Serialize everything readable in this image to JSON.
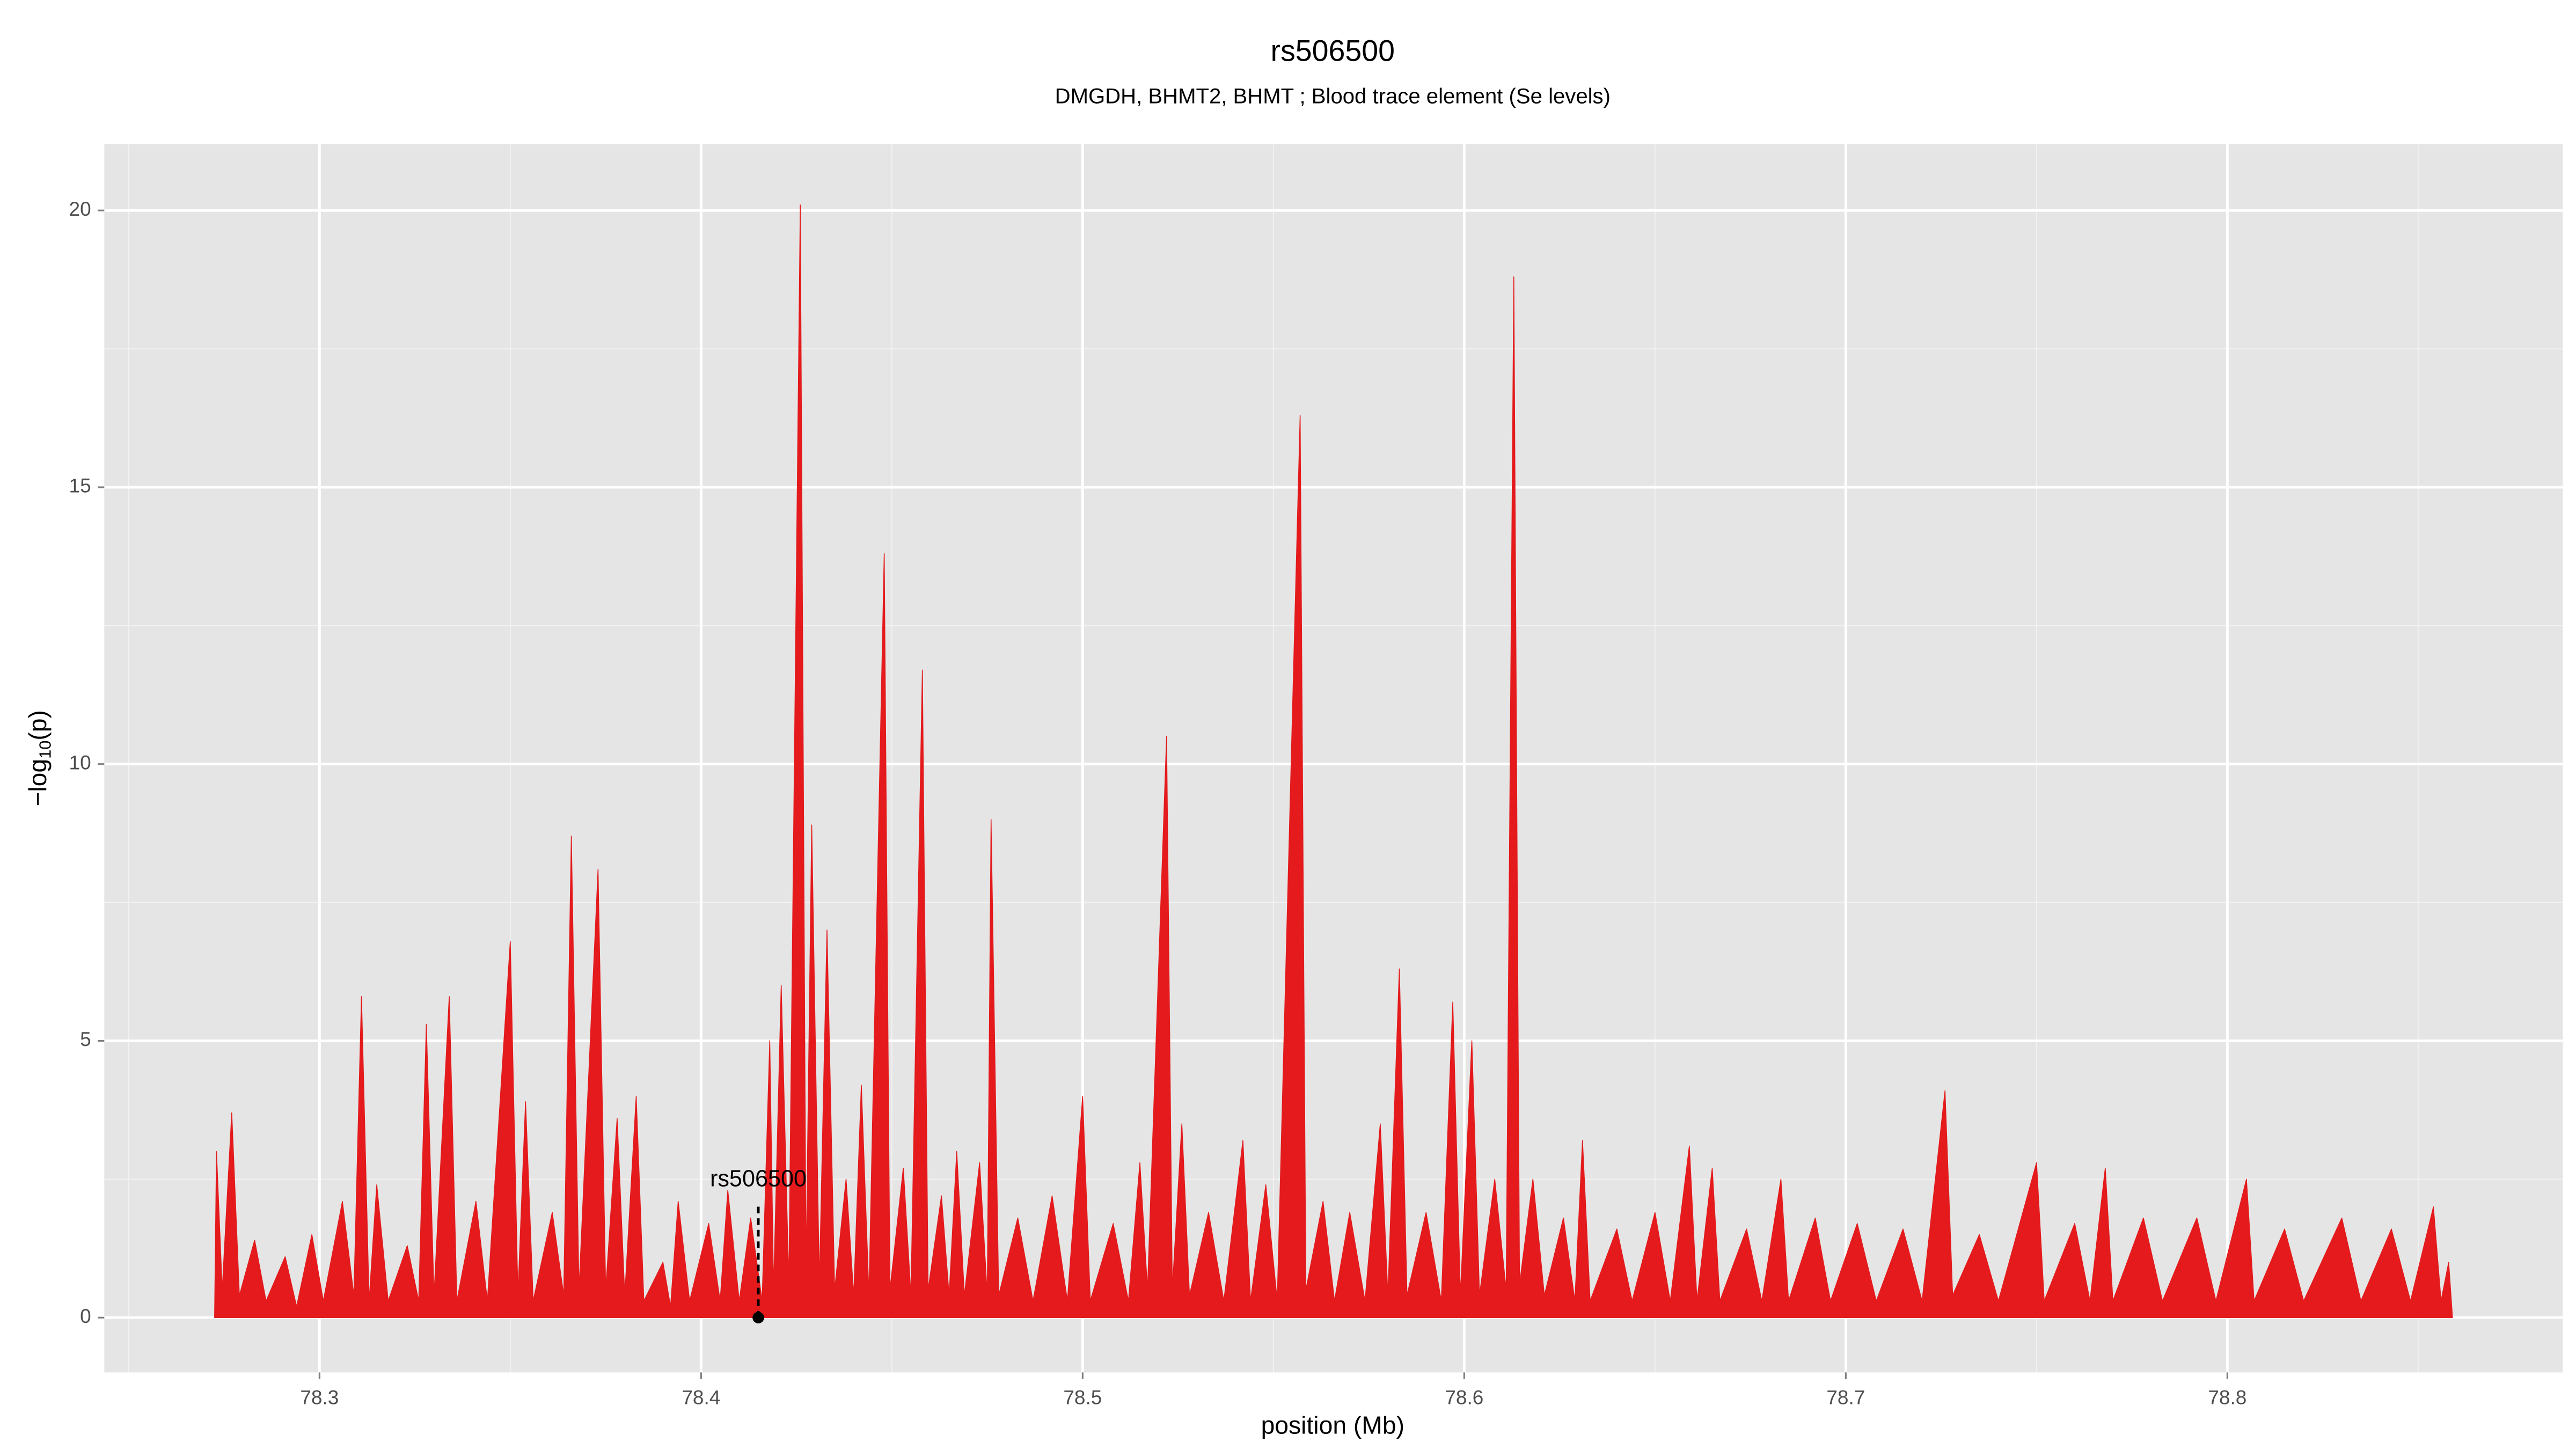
{
  "chart_data": {
    "type": "area",
    "title": "rs506500",
    "subtitle": "DMGDH, BHMT2, BHMT ; Blood trace element (Se levels)",
    "xlabel": "position (Mb)",
    "ylabel": {
      "prefix": "−log",
      "sub": "10",
      "suffix": "(p)"
    },
    "color": "#e41a1c",
    "grid": true,
    "xlim": [
      78.2436,
      78.8879
    ],
    "ylim": [
      -0.99,
      21.2
    ],
    "xticks": [
      78.3,
      78.4,
      78.5,
      78.6,
      78.7,
      78.8
    ],
    "yticks": [
      0,
      5,
      10,
      15,
      20
    ],
    "annotation": {
      "label": "rs506500",
      "x": 78.415,
      "y": 0
    },
    "x": [
      78.2725,
      78.273,
      78.2745,
      78.277,
      78.279,
      78.283,
      78.286,
      78.291,
      78.294,
      78.298,
      78.301,
      78.306,
      78.309,
      78.311,
      78.313,
      78.315,
      78.318,
      78.323,
      78.326,
      78.328,
      78.33,
      78.334,
      78.336,
      78.341,
      78.344,
      78.35,
      78.352,
      78.354,
      78.356,
      78.361,
      78.364,
      78.366,
      78.368,
      78.373,
      78.375,
      78.378,
      78.38,
      78.383,
      78.385,
      78.39,
      78.392,
      78.394,
      78.397,
      78.402,
      78.405,
      78.407,
      78.41,
      78.413,
      78.416,
      78.418,
      78.419,
      78.421,
      78.423,
      78.426,
      78.4275,
      78.429,
      78.431,
      78.433,
      78.435,
      78.438,
      78.44,
      78.442,
      78.444,
      78.448,
      78.4495,
      78.453,
      78.455,
      78.458,
      78.4595,
      78.463,
      78.465,
      78.467,
      78.469,
      78.473,
      78.475,
      78.476,
      78.478,
      78.483,
      78.487,
      78.492,
      78.496,
      78.5,
      78.502,
      78.508,
      78.512,
      78.515,
      78.517,
      78.522,
      78.5235,
      78.526,
      78.528,
      78.533,
      78.537,
      78.542,
      78.544,
      78.548,
      78.551,
      78.557,
      78.5585,
      78.563,
      78.566,
      78.57,
      78.574,
      78.578,
      78.58,
      78.583,
      78.585,
      78.59,
      78.594,
      78.597,
      78.599,
      78.602,
      78.604,
      78.608,
      78.611,
      78.613,
      78.6145,
      78.618,
      78.621,
      78.626,
      78.629,
      78.631,
      78.633,
      78.64,
      78.644,
      78.65,
      78.654,
      78.659,
      78.661,
      78.665,
      78.667,
      78.674,
      78.678,
      78.683,
      78.685,
      78.692,
      78.696,
      78.703,
      78.708,
      78.715,
      78.72,
      78.726,
      78.728,
      78.735,
      78.74,
      78.75,
      78.752,
      78.76,
      78.764,
      78.768,
      78.77,
      78.778,
      78.783,
      78.792,
      78.797,
      78.805,
      78.807,
      78.815,
      78.82,
      78.83,
      78.835,
      78.843,
      78.848,
      78.854,
      78.856,
      78.858,
      78.859
    ],
    "values": [
      0,
      3.0,
      0.5,
      3.7,
      0.4,
      1.4,
      0.3,
      1.1,
      0.2,
      1.5,
      0.3,
      2.1,
      0.4,
      5.8,
      0.3,
      2.4,
      0.3,
      1.3,
      0.3,
      5.3,
      0.4,
      5.8,
      0.3,
      2.1,
      0.3,
      6.8,
      0.4,
      3.9,
      0.3,
      1.9,
      0.4,
      8.7,
      0.5,
      8.1,
      0.5,
      3.6,
      0.4,
      4.0,
      0.3,
      1.0,
      0.2,
      2.1,
      0.3,
      1.7,
      0.3,
      2.3,
      0.3,
      1.8,
      0.3,
      5.0,
      0.5,
      6.0,
      0.6,
      20.1,
      0.8,
      8.9,
      0.6,
      7.0,
      0.5,
      2.5,
      0.4,
      4.2,
      0.4,
      13.8,
      0.5,
      2.7,
      0.4,
      11.7,
      0.5,
      2.2,
      0.4,
      3.0,
      0.4,
      2.8,
      0.4,
      9.0,
      0.4,
      1.8,
      0.3,
      2.2,
      0.3,
      4.0,
      0.3,
      1.7,
      0.3,
      2.8,
      0.5,
      10.5,
      0.5,
      3.5,
      0.4,
      1.9,
      0.3,
      3.2,
      0.3,
      2.4,
      0.3,
      16.3,
      0.5,
      2.1,
      0.3,
      1.9,
      0.3,
      3.5,
      0.4,
      6.3,
      0.4,
      1.9,
      0.3,
      5.7,
      0.4,
      5.0,
      0.4,
      2.5,
      0.5,
      18.8,
      0.6,
      2.5,
      0.4,
      1.8,
      0.3,
      3.2,
      0.3,
      1.6,
      0.3,
      1.9,
      0.3,
      3.1,
      0.3,
      2.7,
      0.3,
      1.6,
      0.3,
      2.5,
      0.3,
      1.8,
      0.3,
      1.7,
      0.3,
      1.6,
      0.3,
      4.1,
      0.4,
      1.5,
      0.3,
      2.8,
      0.3,
      1.7,
      0.3,
      2.7,
      0.3,
      1.8,
      0.3,
      1.8,
      0.3,
      2.5,
      0.3,
      1.6,
      0.3,
      1.8,
      0.3,
      1.6,
      0.3,
      2.0,
      0.3,
      1.0,
      0
    ]
  }
}
